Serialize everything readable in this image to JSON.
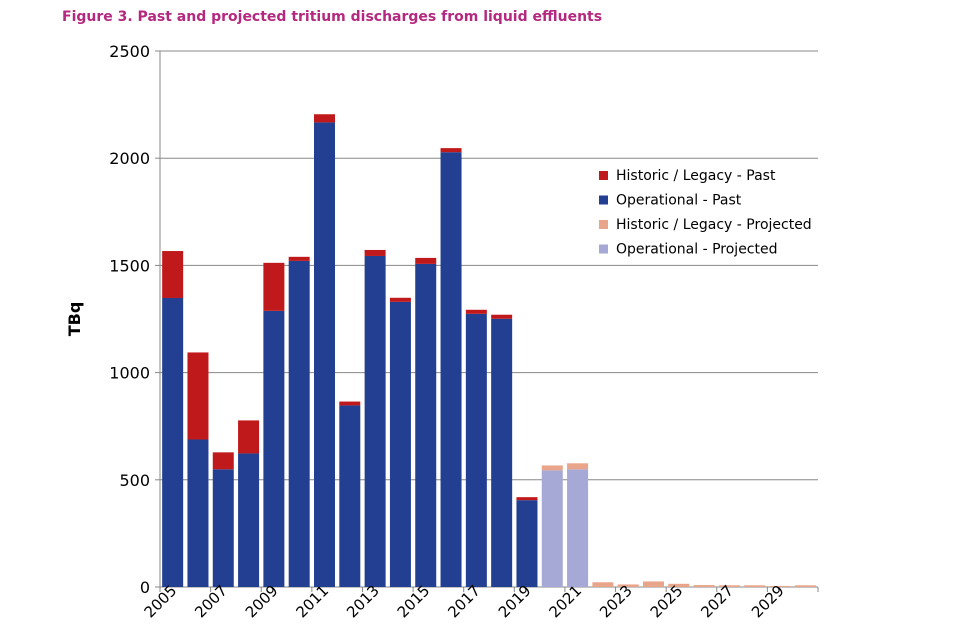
{
  "chart_data": {
    "type": "bar",
    "stacked": true,
    "title": "Figure 3.   Past and projected tritium discharges from liquid effluents",
    "xlabel": "",
    "ylabel": "TBq",
    "ylim": [
      0,
      2500
    ],
    "yticks": [
      0,
      500,
      1000,
      1500,
      2000,
      2500
    ],
    "grid": true,
    "legend_position": "right",
    "categories": [
      "2005",
      "2006",
      "2007",
      "2008",
      "2009",
      "2010",
      "2011",
      "2012",
      "2013",
      "2014",
      "2015",
      "2016",
      "2017",
      "2018",
      "2019",
      "2020",
      "2021",
      "2022",
      "2023",
      "2024",
      "2025",
      "2026",
      "2027",
      "2028",
      "2029",
      "2030"
    ],
    "xtick_labels": [
      "2005",
      "2007",
      "2009",
      "2011",
      "2013",
      "2015",
      "2017",
      "2019",
      "2021",
      "2023",
      "2025",
      "2027",
      "2029"
    ],
    "series": [
      {
        "name": "Historic / Legacy - Past",
        "color": "#c0191b",
        "values": [
          219,
          406,
          79,
          154,
          224,
          19,
          38,
          18,
          28,
          19,
          28,
          19,
          19,
          19,
          14,
          0,
          0,
          0,
          0,
          0,
          0,
          0,
          0,
          0,
          0,
          0
        ]
      },
      {
        "name": "Operational - Past",
        "color": "#233f92",
        "values": [
          1348,
          688,
          549,
          623,
          1288,
          1521,
          2167,
          847,
          1544,
          1330,
          1507,
          2028,
          1274,
          1251,
          405,
          0,
          0,
          0,
          0,
          0,
          0,
          0,
          0,
          0,
          0,
          0
        ]
      },
      {
        "name": "Historic / Legacy - Projected",
        "color": "#e9a58a",
        "values": [
          0,
          0,
          0,
          0,
          0,
          0,
          0,
          0,
          0,
          0,
          0,
          0,
          0,
          0,
          0,
          23,
          28,
          22,
          12,
          26,
          15,
          9,
          8,
          8,
          5,
          8
        ]
      },
      {
        "name": "Operational - Projected",
        "color": "#a6a8d6",
        "values": [
          0,
          0,
          0,
          0,
          0,
          0,
          0,
          0,
          0,
          0,
          0,
          0,
          0,
          0,
          0,
          544,
          549,
          0,
          0,
          0,
          0,
          0,
          0,
          0,
          0,
          0
        ]
      }
    ],
    "stack_order": [
      "Operational - Past",
      "Historic / Legacy - Past",
      "Operational - Projected",
      "Historic / Legacy - Projected"
    ]
  }
}
